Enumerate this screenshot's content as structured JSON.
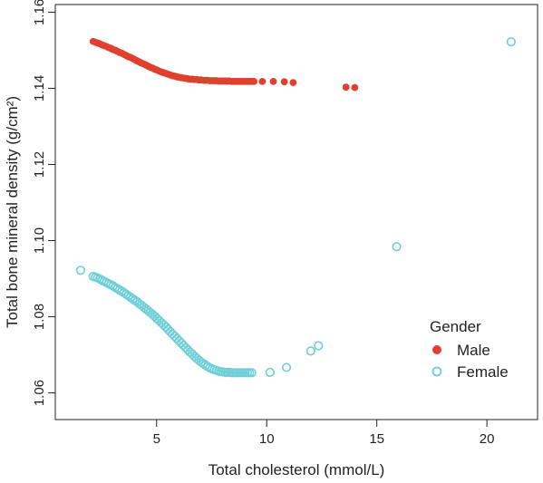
{
  "chart_data": {
    "type": "scatter",
    "title": "",
    "xlabel": "Total cholesterol (mmol/L)",
    "ylabel": "Total bone mineral density (g/cm²)",
    "xlim": [
      0.4,
      22.3
    ],
    "ylim": [
      1.053,
      1.162
    ],
    "xticks": [
      5,
      10,
      15,
      20
    ],
    "xtick_labels": [
      "5",
      "10",
      "15",
      "20"
    ],
    "yticks": [
      1.06,
      1.08,
      1.1,
      1.12,
      1.14,
      1.16
    ],
    "ytick_labels": [
      "1.06",
      "1.08",
      "1.10",
      "1.12",
      "1.14",
      "1.16"
    ],
    "grid": false,
    "legend": {
      "title": "Gender",
      "placement": "bottom-right",
      "entries": [
        "Male",
        "Female"
      ]
    },
    "series": [
      {
        "name": "Male",
        "marker": "filled-circle",
        "color": "#e0402e",
        "points": [
          [
            2.12,
            1.1523
          ],
          [
            2.22,
            1.1521
          ],
          [
            2.32,
            1.1519
          ],
          [
            2.42,
            1.1517
          ],
          [
            2.52,
            1.1514
          ],
          [
            2.62,
            1.1512
          ],
          [
            2.72,
            1.151
          ],
          [
            2.82,
            1.1507
          ],
          [
            2.92,
            1.1505
          ],
          [
            3.02,
            1.1502
          ],
          [
            3.12,
            1.15
          ],
          [
            3.22,
            1.1497
          ],
          [
            3.32,
            1.1494
          ],
          [
            3.42,
            1.1492
          ],
          [
            3.52,
            1.1489
          ],
          [
            3.62,
            1.1486
          ],
          [
            3.72,
            1.1483
          ],
          [
            3.82,
            1.1481
          ],
          [
            3.92,
            1.1478
          ],
          [
            4.02,
            1.1475
          ],
          [
            4.12,
            1.1472
          ],
          [
            4.22,
            1.1469
          ],
          [
            4.32,
            1.1466
          ],
          [
            4.42,
            1.1464
          ],
          [
            4.52,
            1.1461
          ],
          [
            4.62,
            1.1458
          ],
          [
            4.72,
            1.1455
          ],
          [
            4.82,
            1.1453
          ],
          [
            4.92,
            1.145
          ],
          [
            5.02,
            1.1448
          ],
          [
            5.12,
            1.1445
          ],
          [
            5.22,
            1.1443
          ],
          [
            5.32,
            1.1441
          ],
          [
            5.42,
            1.1439
          ],
          [
            5.52,
            1.1437
          ],
          [
            5.62,
            1.1435
          ],
          [
            5.72,
            1.1433
          ],
          [
            5.82,
            1.1432
          ],
          [
            5.92,
            1.143
          ],
          [
            6.02,
            1.1429
          ],
          [
            6.12,
            1.1428
          ],
          [
            6.22,
            1.1427
          ],
          [
            6.32,
            1.1426
          ],
          [
            6.42,
            1.1425
          ],
          [
            6.52,
            1.1424
          ],
          [
            6.62,
            1.1424
          ],
          [
            6.72,
            1.1423
          ],
          [
            6.82,
            1.1423
          ],
          [
            6.92,
            1.1422
          ],
          [
            7.02,
            1.1422
          ],
          [
            7.12,
            1.1421
          ],
          [
            7.22,
            1.1421
          ],
          [
            7.32,
            1.1421
          ],
          [
            7.42,
            1.142
          ],
          [
            7.52,
            1.142
          ],
          [
            7.62,
            1.142
          ],
          [
            7.72,
            1.142
          ],
          [
            7.82,
            1.1419
          ],
          [
            7.92,
            1.1419
          ],
          [
            8.02,
            1.1419
          ],
          [
            8.12,
            1.1419
          ],
          [
            8.22,
            1.1419
          ],
          [
            8.32,
            1.1419
          ],
          [
            8.42,
            1.1418
          ],
          [
            8.52,
            1.1418
          ],
          [
            8.62,
            1.1418
          ],
          [
            8.72,
            1.1418
          ],
          [
            8.82,
            1.1418
          ],
          [
            8.92,
            1.1418
          ],
          [
            9.02,
            1.1418
          ],
          [
            9.12,
            1.1418
          ],
          [
            9.22,
            1.1418
          ],
          [
            9.32,
            1.1418
          ],
          [
            9.42,
            1.1418
          ],
          [
            9.8,
            1.1418
          ],
          [
            10.3,
            1.1418
          ],
          [
            10.8,
            1.1417
          ],
          [
            11.2,
            1.1415
          ],
          [
            13.6,
            1.1403
          ],
          [
            14.0,
            1.1402
          ]
        ]
      },
      {
        "name": "Female",
        "marker": "open-circle",
        "color": "#6fcfd6",
        "points": [
          [
            1.55,
            1.0922
          ],
          [
            2.12,
            1.0906
          ],
          [
            2.22,
            1.0904
          ],
          [
            2.32,
            1.0902
          ],
          [
            2.42,
            1.0899
          ],
          [
            2.52,
            1.0896
          ],
          [
            2.62,
            1.0893
          ],
          [
            2.72,
            1.089
          ],
          [
            2.82,
            1.0887
          ],
          [
            2.92,
            1.0884
          ],
          [
            3.02,
            1.0881
          ],
          [
            3.12,
            1.0877
          ],
          [
            3.22,
            1.0874
          ],
          [
            3.32,
            1.087
          ],
          [
            3.42,
            1.0867
          ],
          [
            3.52,
            1.0863
          ],
          [
            3.62,
            1.0859
          ],
          [
            3.72,
            1.0855
          ],
          [
            3.82,
            1.0851
          ],
          [
            3.92,
            1.0847
          ],
          [
            4.02,
            1.0843
          ],
          [
            4.12,
            1.0839
          ],
          [
            4.22,
            1.0834
          ],
          [
            4.32,
            1.083
          ],
          [
            4.42,
            1.0825
          ],
          [
            4.52,
            1.082
          ],
          [
            4.62,
            1.0816
          ],
          [
            4.72,
            1.0811
          ],
          [
            4.82,
            1.0806
          ],
          [
            4.92,
            1.0801
          ],
          [
            5.02,
            1.0795
          ],
          [
            5.12,
            1.079
          ],
          [
            5.22,
            1.0784
          ],
          [
            5.32,
            1.0779
          ],
          [
            5.42,
            1.0773
          ],
          [
            5.52,
            1.0767
          ],
          [
            5.62,
            1.0761
          ],
          [
            5.72,
            1.0755
          ],
          [
            5.82,
            1.0749
          ],
          [
            5.92,
            1.0743
          ],
          [
            6.02,
            1.0737
          ],
          [
            6.12,
            1.0731
          ],
          [
            6.22,
            1.0725
          ],
          [
            6.32,
            1.0719
          ],
          [
            6.42,
            1.0713
          ],
          [
            6.52,
            1.0707
          ],
          [
            6.62,
            1.0702
          ],
          [
            6.72,
            1.0696
          ],
          [
            6.82,
            1.0691
          ],
          [
            6.92,
            1.0686
          ],
          [
            7.02,
            1.0681
          ],
          [
            7.12,
            1.0677
          ],
          [
            7.22,
            1.0673
          ],
          [
            7.32,
            1.0669
          ],
          [
            7.42,
            1.0666
          ],
          [
            7.52,
            1.0663
          ],
          [
            7.62,
            1.0661
          ],
          [
            7.72,
            1.0659
          ],
          [
            7.82,
            1.0657
          ],
          [
            7.92,
            1.0656
          ],
          [
            8.02,
            1.0655
          ],
          [
            8.12,
            1.0654
          ],
          [
            8.22,
            1.0654
          ],
          [
            8.32,
            1.0654
          ],
          [
            8.42,
            1.0653
          ],
          [
            8.52,
            1.0653
          ],
          [
            8.62,
            1.0653
          ],
          [
            8.72,
            1.0653
          ],
          [
            8.82,
            1.0653
          ],
          [
            8.92,
            1.0653
          ],
          [
            9.02,
            1.0653
          ],
          [
            9.12,
            1.0653
          ],
          [
            9.22,
            1.0653
          ],
          [
            9.32,
            1.0653
          ],
          [
            10.15,
            1.0654
          ],
          [
            10.9,
            1.0667
          ],
          [
            12.0,
            1.071
          ],
          [
            12.35,
            1.0724
          ],
          [
            15.9,
            1.0984
          ],
          [
            21.1,
            1.1522
          ]
        ]
      }
    ]
  }
}
